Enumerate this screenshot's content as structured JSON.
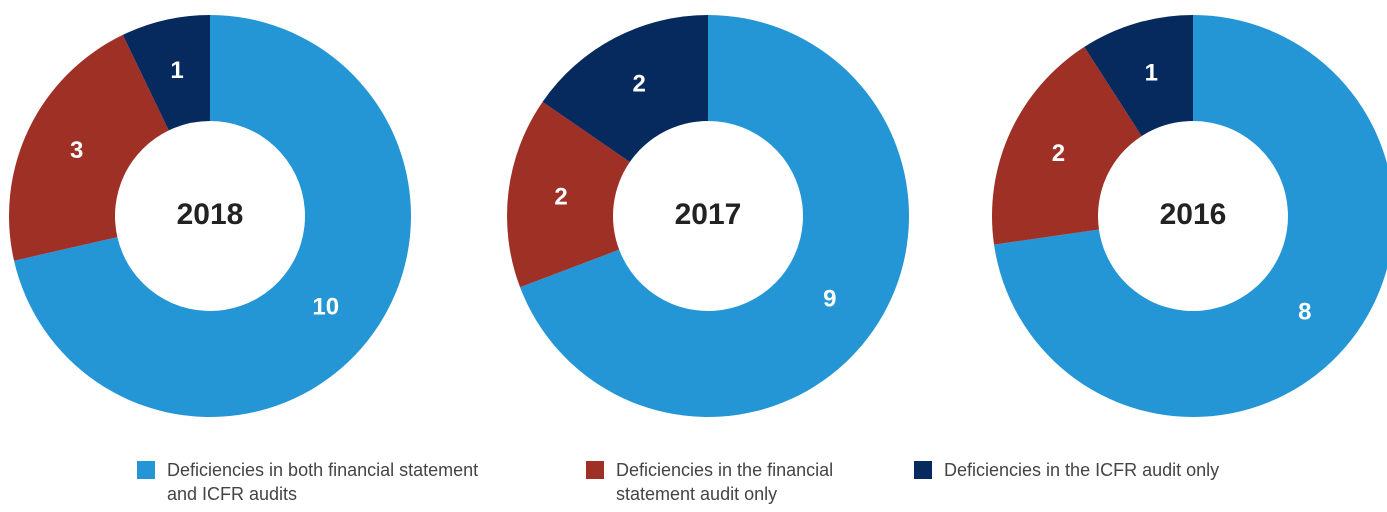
{
  "chart_data": [
    {
      "type": "pie",
      "title": "2018",
      "values": [
        10,
        3,
        1
      ]
    },
    {
      "type": "pie",
      "title": "2017",
      "values": [
        9,
        2,
        2
      ]
    },
    {
      "type": "pie",
      "title": "2016",
      "values": [
        8,
        2,
        1
      ]
    }
  ],
  "legend": {
    "categories": [
      "Deficiencies in both financial statement and ICFR audits",
      "Deficiencies in the financial statement audit only",
      "Deficiencies in the ICFR audit only"
    ],
    "colors": [
      "#2596d5",
      "#9e3025",
      "#062a5e"
    ]
  }
}
